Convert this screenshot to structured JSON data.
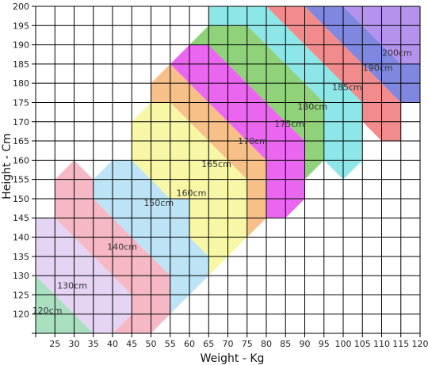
{
  "chart_data": {
    "type": "area",
    "title": "",
    "xlabel": "Weight - Kg",
    "ylabel": "Height - Cm",
    "xlim": [
      20,
      120
    ],
    "ylim": [
      115,
      200
    ],
    "x_ticks": [
      25,
      30,
      35,
      40,
      45,
      50,
      55,
      60,
      65,
      70,
      75,
      80,
      85,
      90,
      95,
      100,
      105,
      110,
      115,
      120
    ],
    "y_ticks": [
      120,
      125,
      130,
      135,
      140,
      145,
      150,
      155,
      160,
      165,
      170,
      175,
      180,
      185,
      190,
      195,
      200
    ],
    "grid": true,
    "bands": [
      {
        "label": "120cm",
        "color": "#a8e0c0",
        "label_at": [
          23,
          121
        ],
        "polygon": [
          [
            20,
            130
          ],
          [
            25,
            125
          ],
          [
            35,
            115
          ],
          [
            20,
            115
          ]
        ]
      },
      {
        "label": "130cm",
        "color": "#e6d4f5",
        "label_at": [
          29.5,
          127.5
        ],
        "polygon": [
          [
            20,
            145
          ],
          [
            25,
            145
          ],
          [
            30,
            140
          ],
          [
            45,
            125
          ],
          [
            45,
            120
          ],
          [
            40,
            115
          ],
          [
            35,
            115
          ],
          [
            25,
            125
          ],
          [
            20,
            130
          ]
        ]
      },
      {
        "label": "140cm",
        "color": "#f6b8c4",
        "label_at": [
          42.5,
          137.5
        ],
        "polygon": [
          [
            25,
            155
          ],
          [
            30,
            160
          ],
          [
            35,
            155
          ],
          [
            35,
            150
          ],
          [
            40,
            145
          ],
          [
            55,
            130
          ],
          [
            55,
            120
          ],
          [
            50,
            115
          ],
          [
            40,
            115
          ],
          [
            45,
            120
          ],
          [
            45,
            125
          ],
          [
            30,
            140
          ],
          [
            25,
            145
          ]
        ]
      },
      {
        "label": "150cm",
        "color": "#bde4f6",
        "label_at": [
          52,
          149
        ]
      }
    ],
    "chart_labels": [
      "160cm",
      "165cm",
      "170cm",
      "175cm",
      "180cm",
      "185cm",
      "190cm",
      "200cm"
    ]
  }
}
